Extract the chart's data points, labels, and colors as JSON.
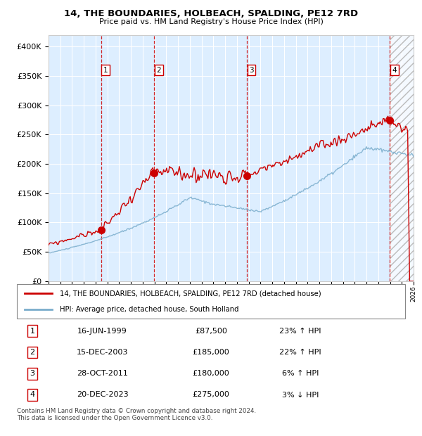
{
  "title": "14, THE BOUNDARIES, HOLBEACH, SPALDING, PE12 7RD",
  "subtitle": "Price paid vs. HM Land Registry's House Price Index (HPI)",
  "legend_line1": "14, THE BOUNDARIES, HOLBEACH, SPALDING, PE12 7RD (detached house)",
  "legend_line2": "HPI: Average price, detached house, South Holland",
  "transactions": [
    {
      "num": 1,
      "date": "16-JUN-1999",
      "price": 87500,
      "pct": "23%",
      "dir": "↑",
      "date_x": 1999.46
    },
    {
      "num": 2,
      "date": "15-DEC-2003",
      "price": 185000,
      "pct": "22%",
      "dir": "↑",
      "date_x": 2003.96
    },
    {
      "num": 3,
      "date": "28-OCT-2011",
      "price": 180000,
      "pct": "6%",
      "dir": "↑",
      "date_x": 2011.83
    },
    {
      "num": 4,
      "date": "20-DEC-2023",
      "price": 275000,
      "pct": "3%",
      "dir": "↓",
      "date_x": 2023.97
    }
  ],
  "red_line_color": "#cc0000",
  "blue_line_color": "#7aadcc",
  "dot_color": "#cc0000",
  "vline_color": "#cc0000",
  "bg_color": "#ddeeff",
  "grid_color": "#ffffff",
  "xmin": 1995.0,
  "xmax": 2026.0,
  "ymin": 0,
  "ymax": 420000,
  "yticks": [
    0,
    50000,
    100000,
    150000,
    200000,
    250000,
    300000,
    350000,
    400000
  ],
  "footer": "Contains HM Land Registry data © Crown copyright and database right 2024.\nThis data is licensed under the Open Government Licence v3.0."
}
